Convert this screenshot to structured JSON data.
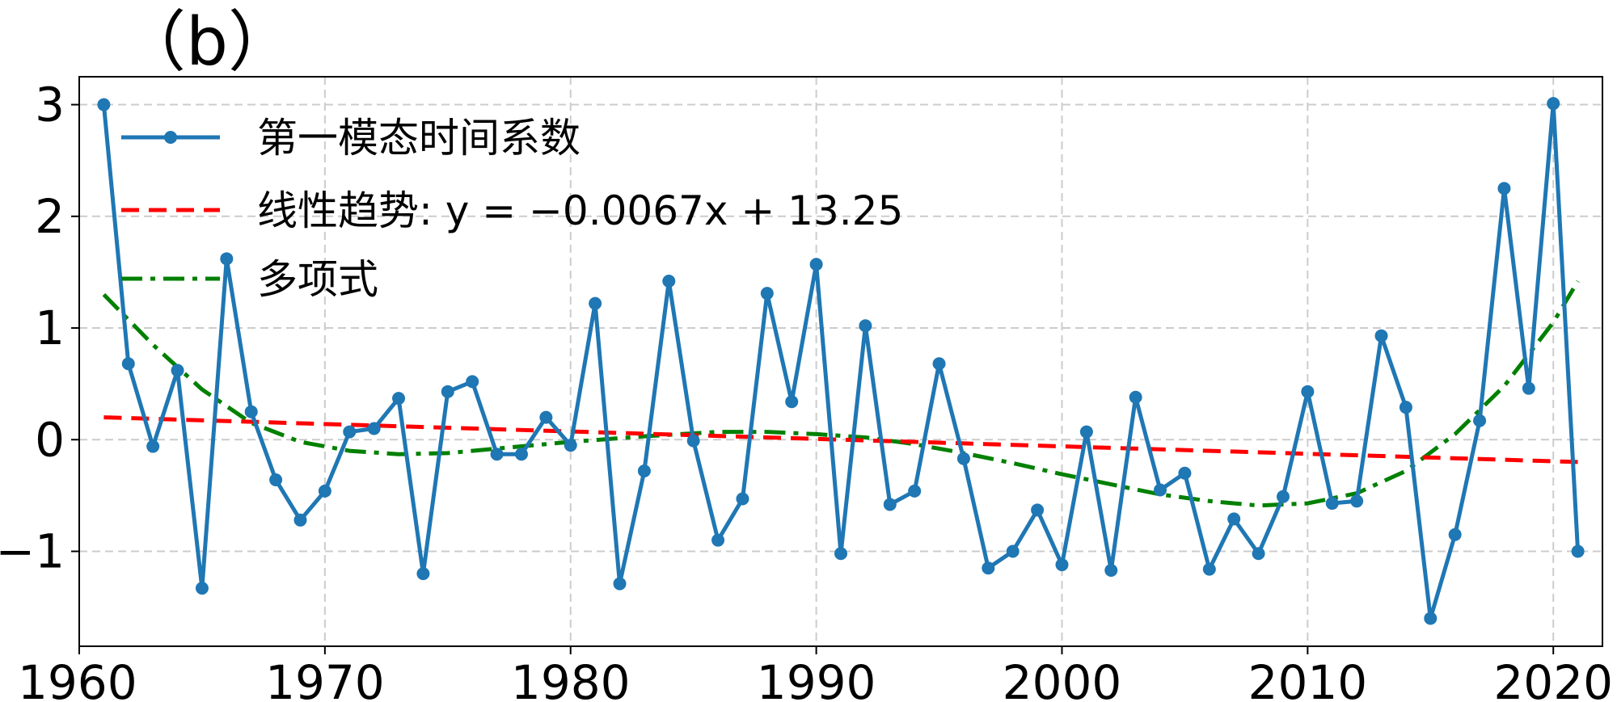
{
  "panel_label": "（b）",
  "chart_data": {
    "type": "line",
    "title": "",
    "xlabel": "",
    "ylabel": "",
    "xlim": [
      1960,
      2022
    ],
    "ylim": [
      -1.85,
      3.25
    ],
    "x_ticks": [
      1960,
      1970,
      1980,
      1990,
      2000,
      2010,
      2020
    ],
    "x_tick_labels": [
      "1960",
      "1970",
      "1980",
      "1990",
      "2000",
      "2010",
      "2020"
    ],
    "y_ticks": [
      -1,
      0,
      1,
      2,
      3
    ],
    "y_tick_labels": [
      "−1",
      "0",
      "1",
      "2",
      "3"
    ],
    "grid": true,
    "legend_position": "upper-left",
    "series": [
      {
        "name": "第一模态时间系数",
        "style": "solid-with-markers",
        "color": "#1f77b4",
        "x": [
          1961,
          1962,
          1963,
          1964,
          1965,
          1966,
          1967,
          1968,
          1969,
          1970,
          1971,
          1972,
          1973,
          1974,
          1975,
          1976,
          1977,
          1978,
          1979,
          1980,
          1981,
          1982,
          1983,
          1984,
          1985,
          1986,
          1987,
          1988,
          1989,
          1990,
          1991,
          1992,
          1993,
          1994,
          1995,
          1996,
          1997,
          1998,
          1999,
          2000,
          2001,
          2002,
          2003,
          2004,
          2005,
          2006,
          2007,
          2008,
          2009,
          2010,
          2011,
          2012,
          2013,
          2014,
          2015,
          2016,
          2017,
          2018,
          2019,
          2020,
          2021
        ],
        "y": [
          3.0,
          0.68,
          -0.06,
          0.62,
          -1.33,
          1.62,
          0.25,
          -0.36,
          -0.72,
          -0.46,
          0.07,
          0.1,
          0.37,
          -1.2,
          0.43,
          0.52,
          -0.13,
          -0.13,
          0.2,
          -0.05,
          1.22,
          -1.29,
          -0.28,
          1.42,
          -0.01,
          -0.9,
          -0.53,
          1.31,
          0.34,
          1.57,
          -1.02,
          1.02,
          -0.58,
          -0.46,
          0.68,
          -0.17,
          -1.15,
          -1.0,
          -0.63,
          -1.12,
          0.07,
          -1.17,
          0.38,
          -0.45,
          -0.3,
          -1.16,
          -0.71,
          -1.02,
          -0.51,
          0.43,
          -0.57,
          -0.55,
          0.93,
          0.29,
          -1.6,
          -0.85,
          0.17,
          2.25,
          0.46,
          3.01,
          -1.0
        ]
      },
      {
        "name": "线性趋势: y = −0.0067x + 13.25",
        "style": "dashed",
        "color": "#ff0000",
        "x": [
          1961,
          2021
        ],
        "y": [
          0.2,
          -0.2
        ]
      },
      {
        "name": "多项式",
        "style": "dash-dot",
        "color": "#008000",
        "x": [
          1961,
          1963,
          1965,
          1967,
          1969,
          1971,
          1973,
          1975,
          1977,
          1980,
          1983,
          1986,
          1988,
          1990,
          1992,
          1994,
          1996,
          1998,
          2000,
          2002,
          2004,
          2006,
          2008,
          2010,
          2012,
          2014,
          2016,
          2018,
          2020,
          2021
        ],
        "y": [
          1.3,
          0.85,
          0.45,
          0.15,
          -0.02,
          -0.1,
          -0.13,
          -0.12,
          -0.08,
          -0.02,
          0.03,
          0.07,
          0.07,
          0.05,
          0.02,
          -0.04,
          -0.12,
          -0.21,
          -0.31,
          -0.4,
          -0.49,
          -0.55,
          -0.59,
          -0.57,
          -0.48,
          -0.28,
          0.05,
          0.48,
          1.05,
          1.42
        ]
      }
    ]
  }
}
